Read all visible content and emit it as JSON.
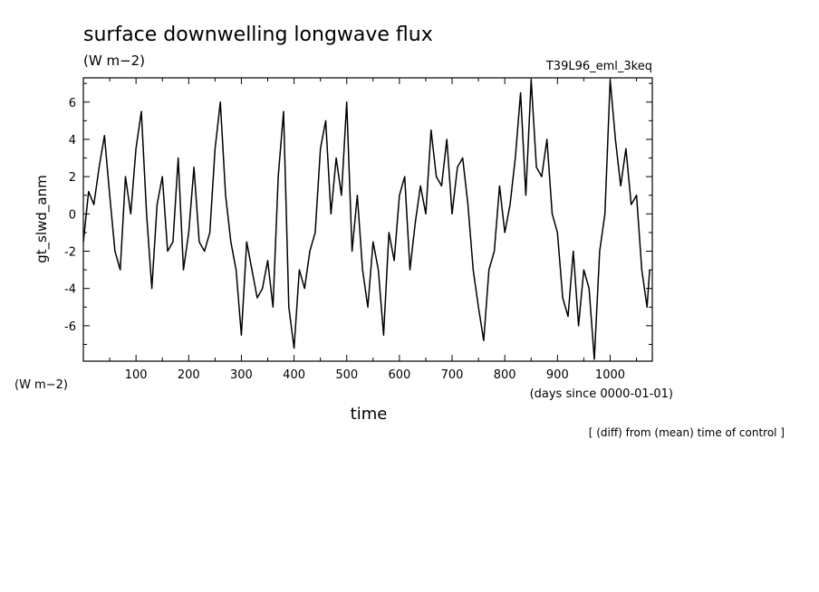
{
  "chart_data": {
    "type": "line",
    "title": "surface downwelling longwave flux",
    "units_label": "(W m−2)",
    "run_label": "T39L96_eml_3keq",
    "ylabel": "gt_slwd_anm",
    "yunits": "(W m−2)",
    "xlabel": "time",
    "xunits": "(days since 0000-01-01)",
    "footnote": "[ (diff) from (mean) time of control ]",
    "xlim": [
      0,
      1080
    ],
    "ylim": [
      -7.9,
      7.3
    ],
    "xticks": [
      100,
      200,
      300,
      400,
      500,
      600,
      700,
      800,
      900,
      1000
    ],
    "yticks": [
      -6,
      -4,
      -2,
      0,
      2,
      4,
      6
    ],
    "grid": false,
    "series": [
      {
        "color": "#000000",
        "x": [
          0,
          10,
          20,
          30,
          40,
          50,
          60,
          70,
          80,
          90,
          100,
          110,
          120,
          130,
          140,
          150,
          160,
          170,
          180,
          190,
          200,
          210,
          220,
          230,
          240,
          250,
          260,
          270,
          280,
          290,
          300,
          310,
          320,
          330,
          340,
          350,
          360,
          370,
          380,
          390,
          400,
          410,
          420,
          430,
          440,
          450,
          460,
          470,
          480,
          490,
          500,
          510,
          520,
          530,
          540,
          550,
          560,
          570,
          580,
          590,
          600,
          610,
          620,
          630,
          640,
          650,
          660,
          670,
          680,
          690,
          700,
          710,
          720,
          730,
          740,
          750,
          760,
          770,
          780,
          790,
          800,
          810,
          820,
          830,
          840,
          850,
          860,
          870,
          880,
          890,
          900,
          910,
          920,
          930,
          940,
          950,
          960,
          970,
          980,
          990,
          1000,
          1010,
          1020,
          1030,
          1040,
          1050,
          1060,
          1070,
          1075
        ],
        "values": [
          -1.5,
          1.2,
          0.5,
          2.5,
          4.2,
          1.0,
          -2.0,
          -3.0,
          2.0,
          0.0,
          3.5,
          5.5,
          0.0,
          -4.0,
          0.5,
          2.0,
          -2.0,
          -1.5,
          3.0,
          -3.0,
          -1.0,
          2.5,
          -1.5,
          -2.0,
          -1.0,
          3.5,
          6.0,
          1.0,
          -1.5,
          -3.0,
          -6.5,
          -1.5,
          -3.0,
          -4.5,
          -4.0,
          -2.5,
          -5.0,
          2.0,
          5.5,
          -5.0,
          -7.2,
          -3.0,
          -4.0,
          -2.0,
          -1.0,
          3.5,
          5.0,
          0.0,
          3.0,
          1.0,
          6.0,
          -2.0,
          1.0,
          -3.0,
          -5.0,
          -1.5,
          -3.0,
          -6.5,
          -1.0,
          -2.5,
          1.0,
          2.0,
          -3.0,
          -0.5,
          1.5,
          0.0,
          4.5,
          2.0,
          1.5,
          4.0,
          0.0,
          2.5,
          3.0,
          0.5,
          -3.0,
          -5.0,
          -6.8,
          -3.0,
          -2.0,
          1.5,
          -1.0,
          0.5,
          3.0,
          6.5,
          1.0,
          7.2,
          2.5,
          2.0,
          4.0,
          0.0,
          -1.0,
          -4.5,
          -5.5,
          -2.0,
          -6.0,
          -3.0,
          -4.0,
          -7.8,
          -2.0,
          0.0,
          7.2,
          4.0,
          1.5,
          3.5,
          0.5,
          1.0,
          -3.0,
          -5.0,
          -3.0
        ]
      }
    ]
  }
}
